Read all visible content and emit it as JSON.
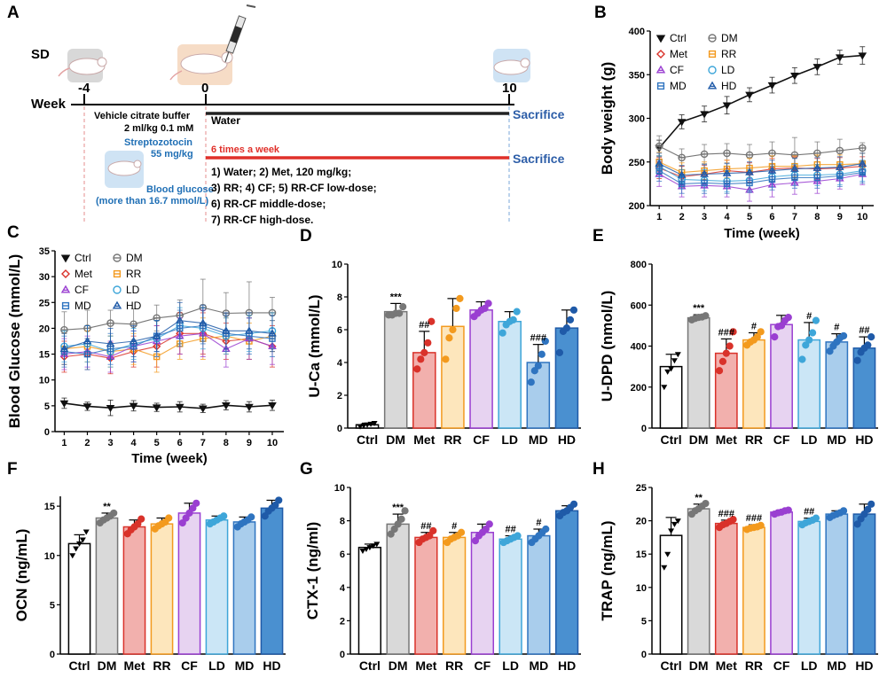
{
  "panels": {
    "A": {
      "label": "A",
      "sd_label": "SD",
      "week_label": "Week",
      "timepoints": [
        "-4",
        "0",
        "10"
      ],
      "vehicle_text": [
        "Vehicle citrate buffer",
        "2 ml/kg 0.1 mM"
      ],
      "stz_text": [
        "Streptozotocin",
        "55 mg/kg"
      ],
      "glucose_text": [
        "Blood glucose",
        "(more than 16.7 mmol/L)"
      ],
      "water_label": "Water",
      "freq_label": "6 times a week",
      "sacrifice_label": "Sacrifice",
      "groups": [
        "1) Water; 2) Met, 120 mg/kg;",
        "3) RR; 4) CF; 5) RR-CF low-dose;",
        "6) RR-CF middle-dose;",
        "7) RR-CF high-dose."
      ],
      "colors": {
        "water_line": "#222222",
        "treat_line": "#e0302a",
        "sacrifice": "#2d5ea8"
      }
    }
  },
  "groups": [
    {
      "name": "Ctrl",
      "marker": "tri-down-filled",
      "color": "#111111",
      "fill": "#ffffff"
    },
    {
      "name": "DM",
      "marker": "circle-bar",
      "color": "#777777",
      "fill": "#cfcfcf"
    },
    {
      "name": "Met",
      "marker": "diamond",
      "color": "#d9322a",
      "fill": "#f2b0ad"
    },
    {
      "name": "RR",
      "marker": "square-bar",
      "color": "#f39a1e",
      "fill": "#fde6bc"
    },
    {
      "name": "CF",
      "marker": "tri-up-bar",
      "color": "#9a3fd1",
      "fill": "#e7d3f1"
    },
    {
      "name": "LD",
      "marker": "circle",
      "color": "#3ea6d9",
      "fill": "#cbe6f6"
    },
    {
      "name": "MD",
      "marker": "square-bar",
      "color": "#2f74c0",
      "fill": "#a9cdec"
    },
    {
      "name": "HD",
      "marker": "tri-up-bar",
      "color": "#1f5aa8",
      "fill": "#4a90d0"
    }
  ],
  "chart_data": [
    {
      "panel": "B",
      "type": "line",
      "title": "",
      "xlabel": "Time (week)",
      "ylabel": "Body weight (g)",
      "x": [
        1,
        2,
        3,
        4,
        5,
        6,
        7,
        8,
        9,
        10
      ],
      "xlim": [
        0.6,
        10.5
      ],
      "ylim": [
        200,
        400
      ],
      "yticks": [
        200,
        250,
        300,
        350,
        400
      ],
      "legend_position": "top-left",
      "series": [
        {
          "name": "Ctrl",
          "values": [
            266,
            296,
            305,
            315,
            327,
            338,
            349,
            359,
            370,
            372
          ],
          "err": [
            9,
            8,
            9,
            10,
            8,
            9,
            9,
            9,
            8,
            10
          ]
        },
        {
          "name": "DM",
          "values": [
            268,
            255,
            259,
            260,
            258,
            260,
            258,
            260,
            263,
            266
          ],
          "err": [
            12,
            10,
            11,
            11,
            12,
            13,
            20,
            13,
            13,
            6
          ]
        },
        {
          "name": "Met",
          "values": [
            243,
            233,
            236,
            240,
            238,
            242,
            243,
            242,
            243,
            245
          ],
          "err": [
            12,
            12,
            10,
            12,
            11,
            12,
            13,
            12,
            12,
            11
          ]
        },
        {
          "name": "RR",
          "values": [
            250,
            238,
            240,
            242,
            243,
            245,
            245,
            247,
            247,
            248
          ],
          "err": [
            11,
            11,
            10,
            10,
            11,
            12,
            12,
            11,
            11,
            12
          ]
        },
        {
          "name": "CF",
          "values": [
            236,
            222,
            223,
            222,
            218,
            224,
            226,
            228,
            231,
            236
          ],
          "err": [
            14,
            12,
            13,
            12,
            13,
            14,
            13,
            14,
            12,
            12
          ]
        },
        {
          "name": "LD",
          "values": [
            245,
            230,
            229,
            228,
            229,
            233,
            235,
            235,
            236,
            240
          ],
          "err": [
            12,
            11,
            12,
            12,
            12,
            12,
            12,
            12,
            12,
            12
          ]
        },
        {
          "name": "MD",
          "values": [
            240,
            225,
            226,
            225,
            226,
            230,
            232,
            232,
            234,
            238
          ],
          "err": [
            12,
            11,
            12,
            11,
            11,
            12,
            12,
            12,
            12,
            12
          ]
        },
        {
          "name": "HD",
          "values": [
            248,
            235,
            236,
            237,
            238,
            240,
            242,
            243,
            244,
            248
          ],
          "err": [
            12,
            11,
            11,
            11,
            12,
            12,
            12,
            12,
            12,
            12
          ]
        }
      ]
    },
    {
      "panel": "C",
      "type": "line",
      "title": "",
      "xlabel": "Time (week)",
      "ylabel": "Blood Glucose (mmol/L)",
      "x": [
        1,
        2,
        3,
        4,
        5,
        6,
        7,
        8,
        9,
        10
      ],
      "xlim": [
        0.6,
        10.5
      ],
      "ylim": [
        0,
        35
      ],
      "yticks": [
        0,
        5,
        10,
        15,
        20,
        25,
        30,
        35
      ],
      "legend_position": "top-left",
      "series": [
        {
          "name": "Ctrl",
          "values": [
            5.5,
            4.9,
            4.6,
            5.0,
            4.7,
            4.8,
            4.5,
            5.1,
            4.8,
            5.1
          ],
          "err": [
            1.0,
            0.8,
            1.5,
            1.0,
            0.8,
            1.0,
            0.8,
            0.9,
            1.0,
            1.0
          ]
        },
        {
          "name": "DM",
          "values": [
            19.7,
            20.0,
            21.0,
            20.8,
            22.0,
            22.5,
            24.0,
            22.9,
            23.0,
            23.0
          ],
          "err": [
            3.5,
            3.5,
            2.5,
            3.0,
            2.5,
            3.0,
            5.5,
            4.0,
            6.0,
            3.0
          ]
        },
        {
          "name": "Met",
          "values": [
            14.5,
            15.0,
            14.2,
            15.5,
            16.5,
            19.0,
            19.0,
            17.5,
            18.0,
            16.5
          ],
          "err": [
            3.0,
            3.0,
            3.0,
            3.0,
            4.0,
            4.0,
            4.0,
            3.5,
            4.0,
            4.0
          ]
        },
        {
          "name": "RR",
          "values": [
            16.0,
            16.5,
            15.5,
            16.0,
            14.5,
            17.0,
            18.0,
            18.5,
            17.5,
            18.5
          ],
          "err": [
            3.0,
            3.0,
            3.0,
            3.0,
            3.0,
            3.0,
            4.0,
            3.5,
            3.5,
            3.0
          ]
        },
        {
          "name": "CF",
          "values": [
            15.0,
            15.5,
            14.5,
            16.5,
            17.5,
            18.5,
            19.0,
            16.0,
            18.0,
            16.5
          ],
          "err": [
            3.0,
            3.0,
            3.0,
            3.0,
            3.0,
            3.5,
            4.5,
            3.5,
            4.0,
            3.5
          ]
        },
        {
          "name": "LD",
          "values": [
            16.5,
            17.0,
            15.5,
            17.0,
            18.0,
            20.5,
            20.0,
            18.5,
            19.0,
            19.5
          ],
          "err": [
            3.0,
            3.5,
            3.0,
            3.0,
            3.5,
            3.5,
            4.0,
            3.5,
            3.5,
            3.5
          ]
        },
        {
          "name": "MD",
          "values": [
            15.5,
            15.0,
            16.0,
            16.5,
            18.5,
            20.0,
            20.5,
            19.0,
            18.5,
            18.0
          ],
          "err": [
            3.0,
            3.0,
            3.0,
            3.0,
            3.0,
            3.5,
            3.5,
            3.5,
            3.5,
            3.5
          ]
        },
        {
          "name": "HD",
          "values": [
            16.0,
            17.5,
            17.0,
            17.5,
            18.5,
            21.5,
            21.0,
            19.5,
            19.5,
            19.0
          ],
          "err": [
            3.0,
            3.0,
            3.0,
            3.0,
            3.0,
            3.5,
            3.5,
            3.5,
            3.5,
            3.5
          ]
        }
      ]
    },
    {
      "panel": "D",
      "type": "bar",
      "ylabel": "U-Ca (mmol/L)",
      "ylim": [
        0,
        10
      ],
      "yticks": [
        0,
        2,
        4,
        6,
        8,
        10
      ],
      "categories": [
        "Ctrl",
        "DM",
        "Met",
        "RR",
        "CF",
        "LD",
        "MD",
        "HD"
      ],
      "values": [
        0.2,
        7.1,
        4.6,
        6.2,
        7.2,
        6.5,
        4.0,
        6.1
      ],
      "err": [
        0.1,
        0.5,
        1.3,
        1.7,
        0.5,
        0.6,
        1.1,
        1.1
      ],
      "points": [
        [
          0.1,
          0.15,
          0.2,
          0.25,
          0.3
        ],
        [
          6.9,
          6.9,
          7.0,
          7.0,
          7.4
        ],
        [
          3.6,
          4.2,
          4.6,
          5.2,
          6.5
        ],
        [
          4.2,
          5.5,
          6.0,
          7.3,
          7.9
        ],
        [
          6.8,
          7.0,
          7.2,
          7.3,
          7.6
        ],
        [
          5.8,
          6.3,
          6.5,
          6.6,
          7.1
        ],
        [
          2.8,
          3.5,
          3.8,
          4.5,
          5.3
        ],
        [
          4.6,
          5.9,
          6.1,
          6.6,
          7.2
        ]
      ],
      "sig": [
        "",
        "***",
        "##",
        "",
        "",
        "",
        "###",
        ""
      ]
    },
    {
      "panel": "E",
      "type": "bar",
      "ylabel": "U-DPD (nmol/L)",
      "ylim": [
        0,
        800
      ],
      "yticks": [
        0,
        200,
        400,
        600,
        800
      ],
      "categories": [
        "Ctrl",
        "DM",
        "Met",
        "RR",
        "CF",
        "LD",
        "MD",
        "HD"
      ],
      "values": [
        300,
        538,
        365,
        430,
        505,
        430,
        420,
        390
      ],
      "err": [
        60,
        15,
        70,
        35,
        45,
        85,
        40,
        55
      ],
      "points": [
        [
          200,
          275,
          290,
          330,
          360
        ],
        [
          528,
          535,
          540,
          542,
          548
        ],
        [
          280,
          325,
          365,
          400,
          470
        ],
        [
          405,
          420,
          430,
          445,
          470
        ],
        [
          445,
          495,
          500,
          525,
          540
        ],
        [
          335,
          405,
          430,
          465,
          525
        ],
        [
          375,
          400,
          420,
          440,
          450
        ],
        [
          330,
          370,
          390,
          405,
          445
        ]
      ],
      "sig": [
        "",
        "***",
        "###",
        "#",
        "",
        "#",
        "#",
        "##"
      ]
    },
    {
      "panel": "F",
      "type": "bar",
      "ylabel": "OCN (ng/mL)",
      "ylim": [
        0,
        16
      ],
      "yticks": [
        0,
        5,
        10,
        15
      ],
      "categories": [
        "Ctrl",
        "DM",
        "Met",
        "RR",
        "CF",
        "LD",
        "MD",
        "HD"
      ],
      "values": [
        11.2,
        13.8,
        12.9,
        13.2,
        14.3,
        13.6,
        13.4,
        14.8
      ],
      "err": [
        0.9,
        0.5,
        0.7,
        0.6,
        1.0,
        0.4,
        0.5,
        0.8
      ],
      "points": [
        [
          10.0,
          10.7,
          11.2,
          11.6,
          12.4
        ],
        [
          13.3,
          13.6,
          13.8,
          14.0,
          14.3
        ],
        [
          12.2,
          12.6,
          12.9,
          13.2,
          13.7
        ],
        [
          12.7,
          13.0,
          13.2,
          13.4,
          13.8
        ],
        [
          13.3,
          13.8,
          14.3,
          14.8,
          15.3
        ],
        [
          13.2,
          13.4,
          13.6,
          13.8,
          14.0
        ],
        [
          12.9,
          13.2,
          13.4,
          13.6,
          13.9
        ],
        [
          14.0,
          14.5,
          14.8,
          15.1,
          15.6
        ]
      ],
      "sig": [
        "",
        "**",
        "",
        "",
        "",
        "",
        "",
        ""
      ]
    },
    {
      "panel": "G",
      "type": "bar",
      "ylabel": "CTX-1 (ng/ml)",
      "ylim": [
        0,
        10
      ],
      "yticks": [
        0,
        2,
        4,
        6,
        8,
        10
      ],
      "categories": [
        "Ctrl",
        "DM",
        "Met",
        "RR",
        "CF",
        "LD",
        "MD",
        "HD"
      ],
      "values": [
        6.4,
        7.8,
        7.0,
        7.0,
        7.3,
        6.9,
        7.1,
        8.6
      ],
      "err": [
        0.2,
        0.6,
        0.3,
        0.3,
        0.5,
        0.2,
        0.4,
        0.3
      ],
      "points": [
        [
          6.2,
          6.3,
          6.4,
          6.5,
          6.6
        ],
        [
          7.2,
          7.5,
          7.8,
          8.1,
          8.6
        ],
        [
          6.7,
          6.9,
          7.0,
          7.1,
          7.4
        ],
        [
          6.7,
          6.9,
          7.0,
          7.1,
          7.3
        ],
        [
          6.8,
          7.1,
          7.3,
          7.5,
          7.8
        ],
        [
          6.7,
          6.8,
          6.9,
          7.0,
          7.1
        ],
        [
          6.7,
          6.9,
          7.1,
          7.3,
          7.5
        ],
        [
          8.3,
          8.5,
          8.6,
          8.8,
          9.0
        ]
      ],
      "sig": [
        "",
        "***",
        "##",
        "#",
        "",
        "##",
        "#",
        ""
      ]
    },
    {
      "panel": "H",
      "type": "bar",
      "ylabel": "TRAP (ng/mL)",
      "ylim": [
        0,
        25
      ],
      "yticks": [
        0,
        5,
        10,
        15,
        20,
        25
      ],
      "categories": [
        "Ctrl",
        "DM",
        "Met",
        "RR",
        "CF",
        "LD",
        "MD",
        "HD"
      ],
      "values": [
        17.8,
        21.8,
        19.6,
        19.0,
        21.3,
        19.9,
        21.0,
        21.0
      ],
      "err": [
        2.7,
        0.7,
        0.5,
        0.4,
        0.3,
        0.5,
        0.5,
        1.5
      ],
      "points": [
        [
          13.0,
          15.0,
          18.5,
          19.5,
          20.0
        ],
        [
          21.0,
          21.5,
          21.8,
          22.2,
          22.6
        ],
        [
          19.0,
          19.4,
          19.6,
          19.9,
          20.2
        ],
        [
          18.7,
          18.9,
          19.0,
          19.1,
          19.3
        ],
        [
          21.0,
          21.2,
          21.3,
          21.5,
          21.6
        ],
        [
          19.4,
          19.7,
          19.9,
          20.1,
          20.4
        ],
        [
          20.5,
          20.8,
          21.0,
          21.2,
          21.5
        ],
        [
          19.5,
          20.3,
          21.0,
          21.7,
          22.5
        ]
      ],
      "sig": [
        "",
        "**",
        "###",
        "###",
        "",
        "##",
        "",
        ""
      ]
    }
  ]
}
